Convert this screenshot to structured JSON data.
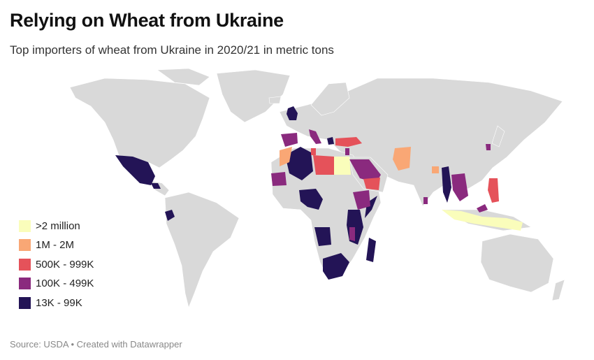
{
  "title": "Relying on Wheat from Ukraine",
  "subtitle": "Top importers of wheat from Ukraine in 2020/21 in metric tons",
  "footer": {
    "source": "Source: USDA",
    "separator": "•",
    "credit": "Created with Datawrapper"
  },
  "colors": {
    "background_land": "#d9d9d9",
    "over_2m": "#fafdbb",
    "1m_2m": "#f9a775",
    "500k_999k": "#e5525a",
    "100k_499k": "#8a2a7e",
    "13k_99k": "#231456"
  },
  "legend": [
    {
      "label": ">2 million",
      "color": "#fafdbb"
    },
    {
      "label": "1M - 2M",
      "color": "#f9a775"
    },
    {
      "label": "500K - 999K",
      "color": "#e5525a"
    },
    {
      "label": "100K - 499K",
      "color": "#8a2a7e"
    },
    {
      "label": "13K - 99K",
      "color": "#231456"
    }
  ],
  "map_data": {
    "type": "choropleth",
    "categories": [
      {
        "bin": ">2 million",
        "countries": [
          "Egypt",
          "Indonesia"
        ]
      },
      {
        "bin": "1M - 2M",
        "countries": [
          "Morocco",
          "Pakistan",
          "Bangladesh"
        ]
      },
      {
        "bin": "500K - 999K",
        "countries": [
          "Turkey",
          "Libya",
          "Tunisia",
          "Yemen",
          "Philippines"
        ]
      },
      {
        "bin": "100K - 499K",
        "countries": [
          "Spain",
          "Italy",
          "Saudi Arabia",
          "Mauritania",
          "Ethiopia",
          "Kenya",
          "Thailand",
          "Vietnam",
          "South Korea",
          "Malaysia",
          "Sri Lanka",
          "Lebanon",
          "Israel"
        ]
      },
      {
        "bin": "13K - 99K",
        "countries": [
          "United Kingdom",
          "Mexico",
          "Ecuador",
          "Algeria",
          "Nigeria",
          "Cameroon",
          "Angola",
          "Tanzania",
          "Mozambique",
          "Madagascar",
          "South Africa",
          "Myanmar",
          "Greece",
          "Netherlands",
          "Guatemala",
          "Honduras",
          "Somalia",
          "Uganda",
          "Malawi",
          "Zimbabwe"
        ]
      }
    ]
  }
}
